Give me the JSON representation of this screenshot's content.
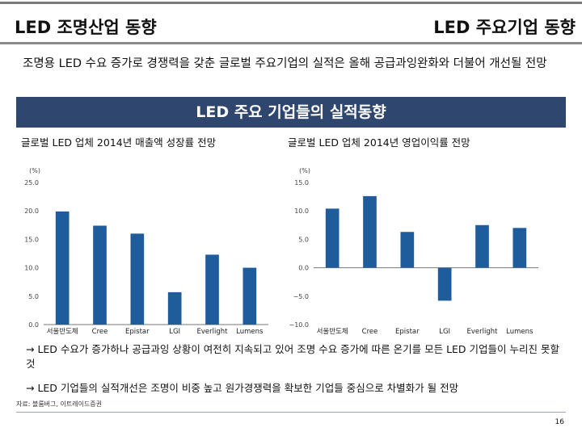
{
  "header": {
    "left_title": "LED 조명산업 동향",
    "right_title": "LED 주요기업 동향"
  },
  "lead_text": "조명용 LED 수요 증가로 경쟁력을 갖춘 글로벌 주요기업의 실적은 올해 공급과잉완화와 더불어 개선될 전망",
  "banner": "LED 주요 기업들의 실적동향",
  "chart_data": [
    {
      "type": "bar",
      "title": "글로벌 LED 업체 2014년 매출액 성장률 전망",
      "unit_label": "(%)",
      "categories": [
        "서울반도체",
        "Cree",
        "Epistar",
        "LGI",
        "Everlight",
        "Lumens"
      ],
      "values": [
        19.9,
        17.4,
        16.0,
        5.7,
        12.3,
        10.0
      ],
      "yticks": [
        "25.0",
        "20.0",
        "15.0",
        "10.0",
        "5.0",
        "0.0"
      ],
      "ylim": [
        0,
        25
      ],
      "bar_color": "#1f5c9c",
      "grid": false
    },
    {
      "type": "bar",
      "title": "글로벌 LED 업체 2014년 영업이익률 전망",
      "unit_label": "(%)",
      "categories": [
        "서울반도체",
        "Cree",
        "Epistar",
        "LGI",
        "Everlight",
        "Lumens"
      ],
      "values": [
        10.4,
        12.6,
        6.3,
        -5.8,
        7.5,
        7.0
      ],
      "yticks": [
        "15.0",
        "10.0",
        "5.0",
        "0.0",
        "−5.0",
        "−10.0"
      ],
      "ylim": [
        -10,
        15
      ],
      "bar_color": "#1f5c9c",
      "grid": false
    }
  ],
  "notes": [
    "→ LED 수요가 증가하나 공급과잉 상황이 여전히 지속되고 있어 조명 수요 증가에 따른 온기를 모든 LED 기업들이 누리진 못할 것",
    "→ LED 기업들의 실적개선은 조명이 비중 높고 원가경쟁력을 확보한 기업들 중심으로 차별화가 될 전망"
  ],
  "source": "자료: 블룸버그, 이트레이드증권",
  "page_number": "16"
}
